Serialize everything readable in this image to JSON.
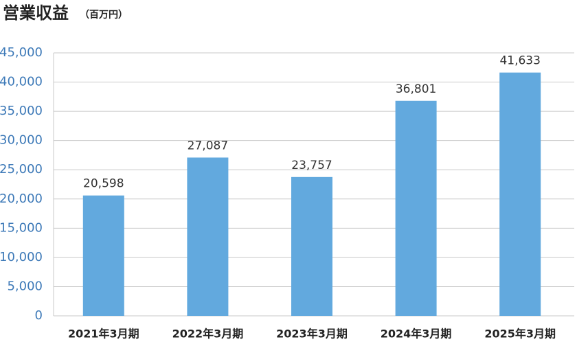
{
  "chart_data": {
    "type": "bar",
    "title": "営業収益",
    "subtitle": "（百万円）",
    "categories": [
      "2021年3月期",
      "2022年3月期",
      "2023年3月期",
      "2024年3月期",
      "2025年3月期"
    ],
    "values": [
      20598,
      27087,
      23757,
      36801,
      41633
    ],
    "value_labels": [
      "20,598",
      "27,087",
      "23,757",
      "36,801",
      "41,633"
    ],
    "color": "#62a9de",
    "ylim": [
      0,
      45000
    ],
    "yticks": [
      0,
      {
        "value": 5000,
        "label": "5,000"
      },
      {
        "value": 10000,
        "label": "10,000"
      },
      {
        "value": 15000,
        "label": "15,000"
      },
      {
        "value": 20000,
        "label": "20,000"
      },
      {
        "value": 25000,
        "label": "25,000"
      },
      {
        "value": 30000,
        "label": "30,000"
      },
      {
        "value": 35000,
        "label": "35,000"
      },
      {
        "value": 40000,
        "label": "40,000"
      },
      {
        "value": 45000,
        "label": "45,000"
      }
    ],
    "grid": true
  }
}
